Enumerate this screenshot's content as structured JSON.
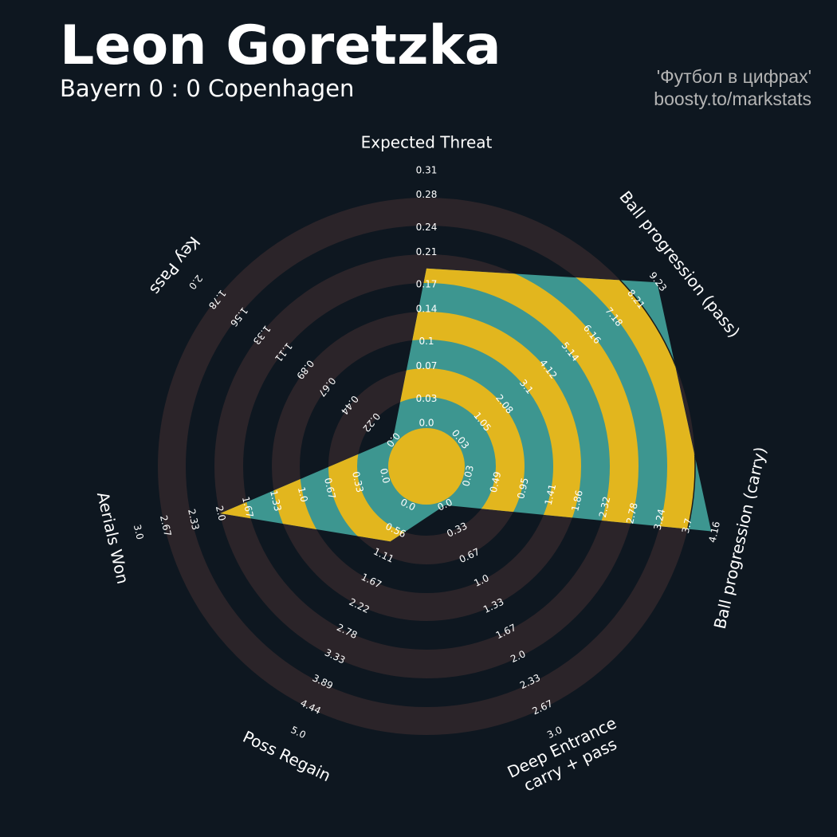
{
  "chart_data": {
    "type": "radar",
    "title": "Leon Goretzka",
    "subtitle": "Bayern 0 : 0 Copenhagen",
    "credits": [
      "'Футбол в цифрах'",
      "boosty.to/markstats"
    ],
    "categories": [
      [
        "Expected Threat"
      ],
      [
        "Ball progression (pass)"
      ],
      [
        "Ball progression (carry)"
      ],
      [
        "Deep Entrance",
        "carry + pass"
      ],
      [
        "Poss Regain"
      ],
      [
        "Aerials Won"
      ],
      [
        "Key Pass"
      ]
    ],
    "values": [
      0.19,
      9.2,
      4.1,
      0,
      0.8,
      2.0,
      0
    ],
    "color": "#3d9690",
    "ring_color": "#2b2429",
    "highlight_color": "#e2b61e",
    "axes": [
      {
        "lim": [
          0,
          0.31
        ],
        "ticks": [
          {
            "value": 0,
            "label": "0.0"
          },
          0.03,
          0.07,
          0.1,
          0.14,
          0.17,
          0.21,
          0.24,
          0.28,
          0.31
        ]
      },
      {
        "lim": [
          0.03,
          9.23
        ],
        "ticks": [
          0.03,
          1.05,
          2.08,
          3.1,
          4.12,
          5.14,
          6.16,
          7.18,
          8.21,
          9.23
        ]
      },
      {
        "lim": [
          0.03,
          4.16
        ],
        "ticks": [
          0.03,
          0.49,
          0.95,
          1.41,
          1.86,
          2.32,
          2.78,
          3.24,
          3.7,
          4.16
        ]
      },
      {
        "lim": [
          0,
          3
        ],
        "ticks": [
          {
            "value": 0,
            "label": "0.0"
          },
          0.33,
          0.67,
          {
            "value": 1,
            "label": "1.0"
          },
          1.33,
          1.67,
          {
            "value": 2,
            "label": "2.0"
          },
          2.33,
          2.67,
          {
            "value": 3,
            "label": "3.0"
          }
        ]
      },
      {
        "lim": [
          0,
          5
        ],
        "ticks": [
          {
            "value": 0,
            "label": "0.0"
          },
          0.56,
          1.11,
          1.67,
          2.22,
          2.78,
          3.33,
          3.89,
          4.44,
          {
            "value": 5,
            "label": "5.0"
          }
        ]
      },
      {
        "lim": [
          0,
          3
        ],
        "ticks": [
          {
            "value": 0,
            "label": "0.0"
          },
          0.33,
          0.67,
          {
            "value": 1,
            "label": "1.0"
          },
          1.33,
          1.67,
          {
            "value": 2,
            "label": "2.0"
          },
          2.33,
          2.67,
          {
            "value": 3,
            "label": "3.0"
          }
        ]
      },
      {
        "lim": [
          0,
          2
        ],
        "ticks": [
          {
            "value": 0,
            "label": "0.0"
          },
          0.22,
          0.44,
          0.67,
          0.89,
          1.11,
          1.33,
          1.56,
          1.78,
          {
            "value": 2,
            "label": "2.0"
          }
        ]
      }
    ]
  }
}
